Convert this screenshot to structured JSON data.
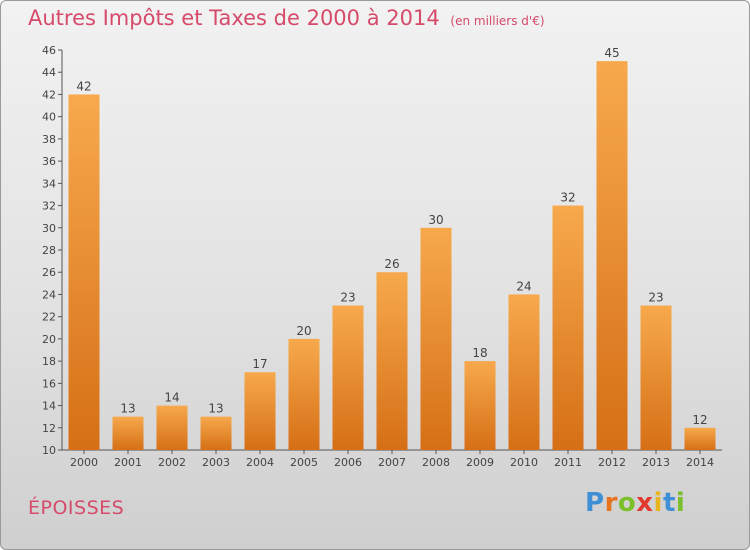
{
  "header": {
    "title": "Autres Impôts et Taxes de 2000 à 2014",
    "unit": "(en milliers d'€)"
  },
  "footer": {
    "commune": "ÉPOISSES",
    "logo_letters": [
      "P",
      "r",
      "o",
      "x",
      "i",
      "t",
      "i"
    ],
    "logo_colors": [
      "#3f8fd6",
      "#e8731e",
      "#7bbf2a",
      "#e23a2e",
      "#e8b51e",
      "#3f8fd6",
      "#7bbf2a"
    ]
  },
  "colors": {
    "bar_top": "#f7a94c",
    "bar_bottom": "#d66f16",
    "title": "#d64a6a"
  },
  "chart_data": {
    "type": "bar",
    "title": "Autres Impôts et Taxes de 2000 à 2014",
    "categories": [
      "2000",
      "2001",
      "2002",
      "2003",
      "2004",
      "2005",
      "2006",
      "2007",
      "2008",
      "2009",
      "2010",
      "2011",
      "2012",
      "2013",
      "2014"
    ],
    "values": [
      42,
      13,
      14,
      13,
      17,
      20,
      23,
      26,
      30,
      18,
      24,
      32,
      45,
      23,
      12
    ],
    "ylim": [
      10,
      46
    ],
    "yticks": [
      10,
      12,
      14,
      16,
      18,
      20,
      22,
      24,
      26,
      28,
      30,
      32,
      34,
      36,
      38,
      40,
      42,
      44,
      46
    ],
    "grid": false,
    "legend": "none"
  }
}
